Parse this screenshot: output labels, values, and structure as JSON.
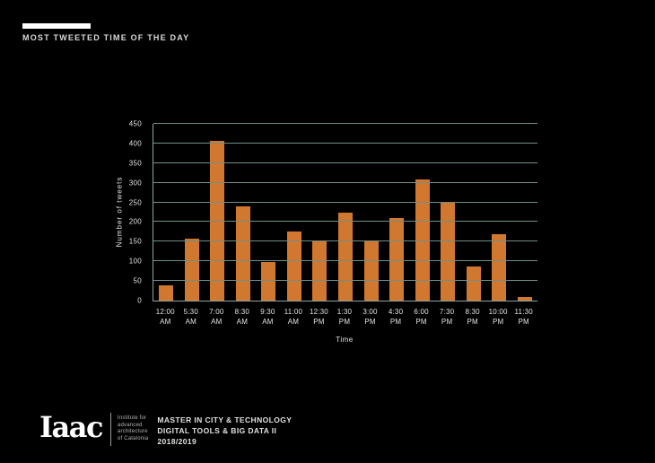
{
  "header": {
    "title": "MOST TWEETED TIME OF THE DAY"
  },
  "chart_data": {
    "type": "bar",
    "title": "MOST TWEETED TIME OF THE DAY",
    "categories": [
      "12:00 AM",
      "5:30 AM",
      "7:00 AM",
      "8:30 AM",
      "9:30 AM",
      "11:00 AM",
      "12:30 PM",
      "1:30 PM",
      "3:00 PM",
      "4:30 PM",
      "6:00 PM",
      "7:30 PM",
      "8:30 PM",
      "10:00 PM",
      "11:30 PM"
    ],
    "values": [
      38,
      157,
      407,
      240,
      98,
      175,
      150,
      225,
      154,
      211,
      309,
      251,
      87,
      168,
      9
    ],
    "xlabel": "Time",
    "ylabel": "Number of tweets",
    "ylim": [
      0,
      450
    ],
    "ytick_step": 50,
    "grid": true,
    "legend": "none",
    "bar_color": "#d0782f",
    "gridline_color": "#6f8f88",
    "axis_color": "#8aa7a0",
    "tick_label_color": "#e3e4e2"
  },
  "footer": {
    "logo": "Iaac",
    "institute_lines": [
      "Institute for",
      "advanced",
      "architecture",
      "of Catalonia"
    ],
    "program_lines": [
      "MASTER IN CITY & TECHNOLOGY",
      "DIGITAL TOOLS & BIG DATA II",
      "2018/2019"
    ]
  },
  "colors": {
    "background": "#000000",
    "accent_bar": "#ffffff",
    "title_text": "#d9d9d9"
  }
}
